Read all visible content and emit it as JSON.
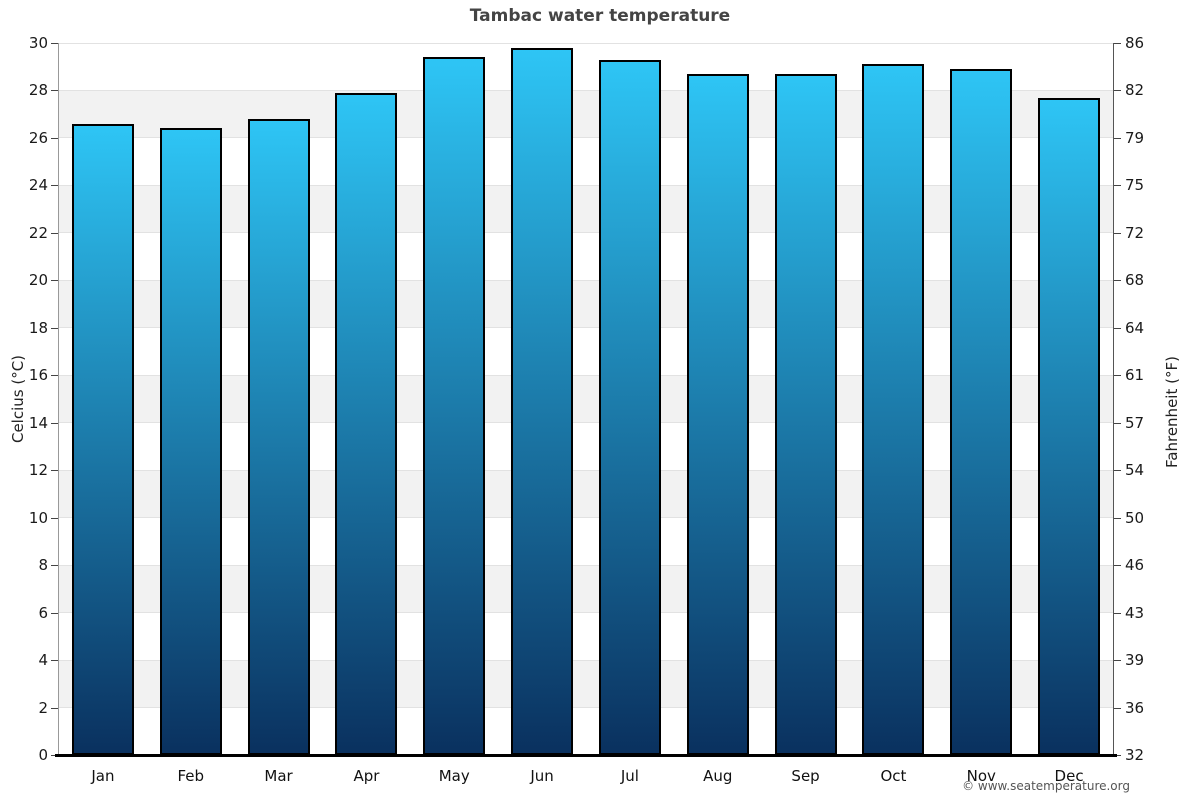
{
  "header": {
    "title": "Tambac water temperature"
  },
  "chart_data": {
    "type": "bar",
    "title": "Tambac water temperature",
    "categories": [
      "Jan",
      "Feb",
      "Mar",
      "Apr",
      "May",
      "Jun",
      "Jul",
      "Aug",
      "Sep",
      "Oct",
      "Nov",
      "Dec"
    ],
    "values": [
      26.6,
      26.4,
      26.8,
      27.9,
      29.4,
      29.8,
      29.3,
      28.7,
      28.7,
      29.1,
      28.9,
      27.7
    ],
    "unit": "°C",
    "ylabel_left": "Celcius (°C)",
    "ylabel_right": "Fahrenheit (°F)",
    "ylim": [
      0,
      30
    ],
    "yticks_celsius": [
      0,
      2,
      4,
      6,
      8,
      10,
      12,
      14,
      16,
      18,
      20,
      22,
      24,
      26,
      28,
      30
    ],
    "yticks_fahrenheit_labels": [
      "32",
      "36",
      "39",
      "43",
      "46",
      "50",
      "54",
      "57",
      "61",
      "64",
      "68",
      "72",
      "75",
      "79",
      "82",
      "86"
    ],
    "grid": "horizontal-bands-every-2-degrees",
    "legend": "none"
  },
  "colors": {
    "bar_gradient_top": "#2ec5f5",
    "bar_gradient_bottom": "#0a315f",
    "bar_border": "#000000",
    "band_fill": "#f2f2f2",
    "gridline": "#e2e2e2",
    "axis_left_spine": "#999999",
    "axis_right_spine": "#555555",
    "axis_bottom_spine": "#000000",
    "tick_mark": "#444444"
  },
  "footer": {
    "credit": "© www.seatemperature.org"
  }
}
